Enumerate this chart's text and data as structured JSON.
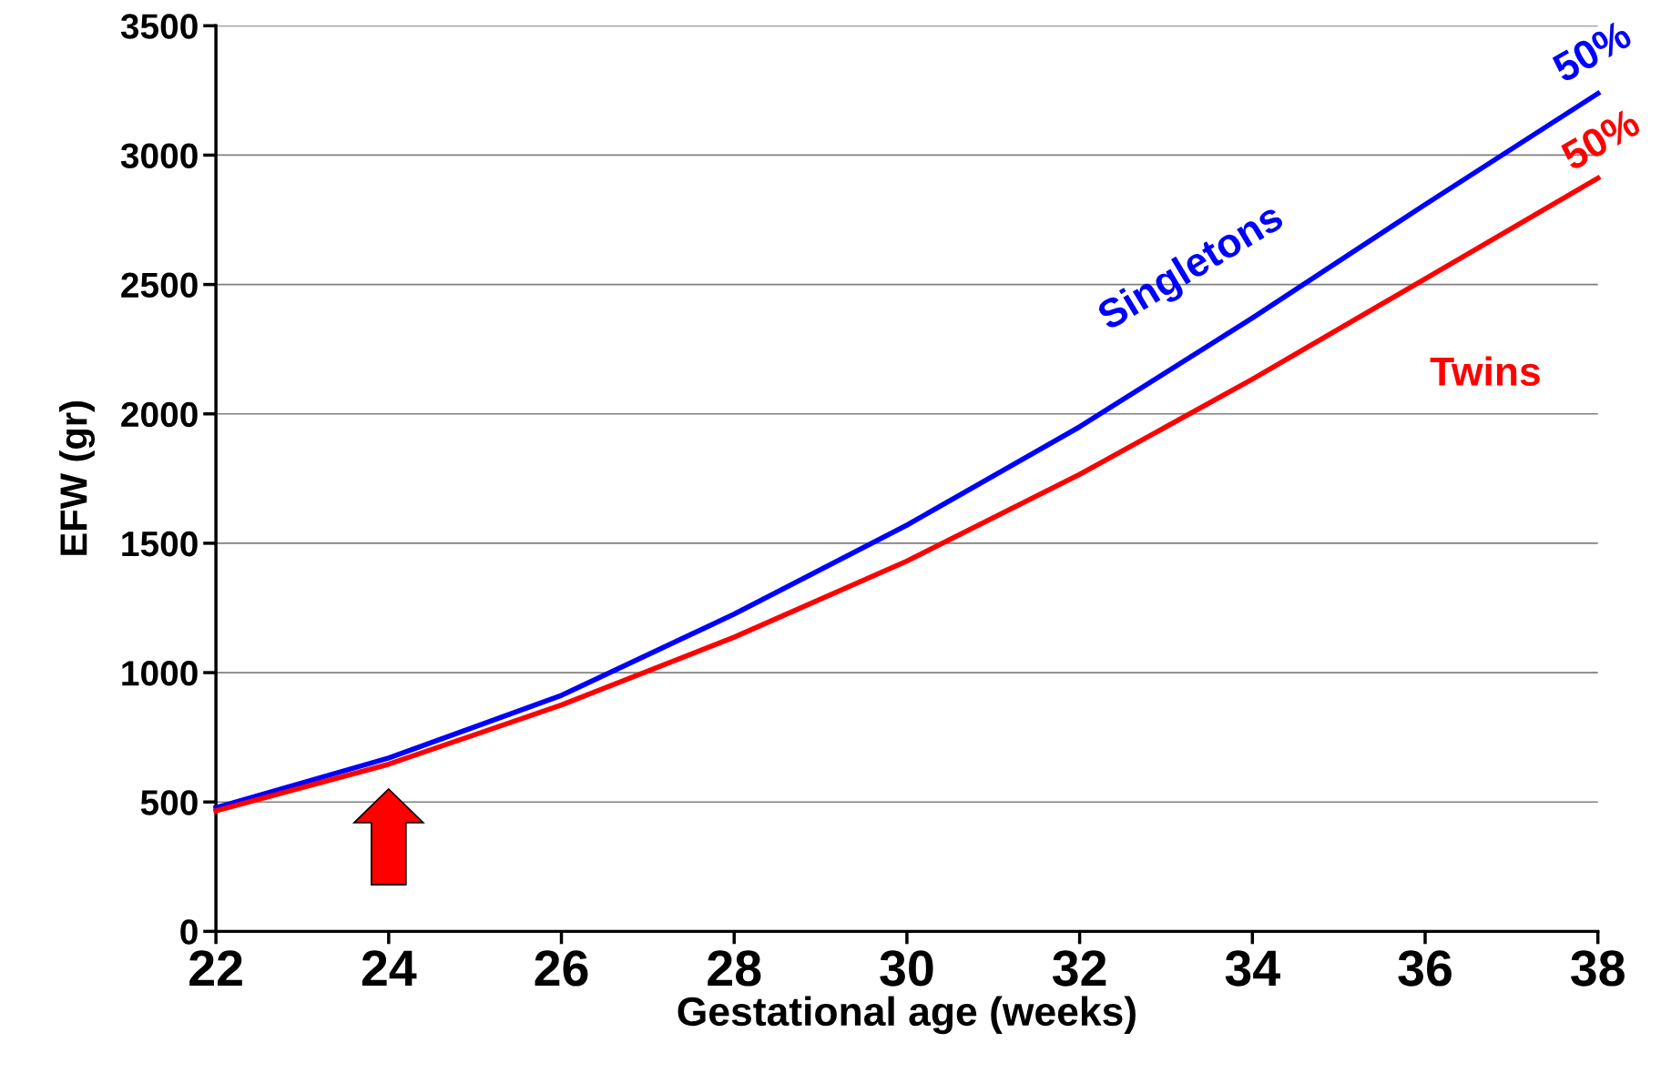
{
  "chart_data": {
    "type": "line",
    "xlabel": "Gestational age (weeks)",
    "ylabel": "EFW (gr)",
    "x": [
      22,
      24,
      26,
      28,
      30,
      32,
      34,
      36,
      38
    ],
    "series": [
      {
        "name": "Singletons",
        "color": "#0000ff",
        "values": [
          478,
          670,
          912,
          1226,
          1570,
          1950,
          2371,
          2809,
          3238
        ]
      },
      {
        "name": "Twins",
        "color": "#ff0000",
        "values": [
          466,
          646,
          875,
          1137,
          1431,
          1766,
          2134,
          2522,
          2911
        ]
      }
    ],
    "annotations": [
      "50%",
      "50%"
    ],
    "xlim": [
      22,
      38
    ],
    "xticks": [
      22,
      24,
      26,
      28,
      30,
      32,
      34,
      36,
      38
    ],
    "ylim": [
      0,
      3500
    ],
    "yticks": [
      0,
      500,
      1000,
      1500,
      2000,
      2500,
      3000,
      3500
    ],
    "grid": "y",
    "legend": false,
    "marker": "none",
    "line_style": "solid"
  }
}
